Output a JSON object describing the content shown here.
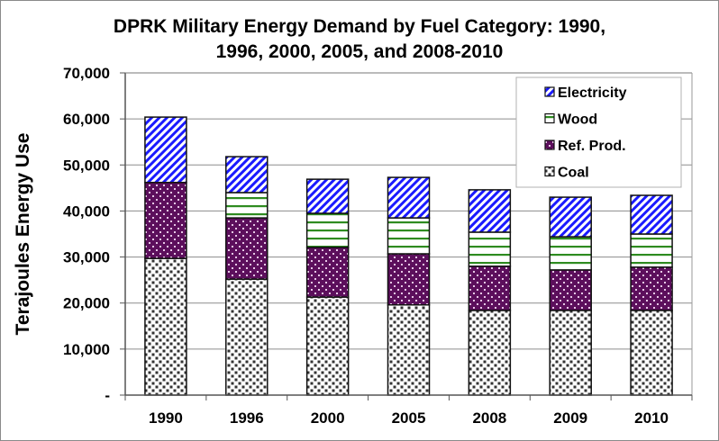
{
  "chart_data": {
    "type": "bar",
    "stacked": true,
    "title": "DPRK Military Energy Demand by Fuel Category: 1990, 1996, 2000, 2005, and 2008-2010",
    "title_lines": [
      "DPRK Military Energy Demand by Fuel Category: 1990,",
      "1996, 2000, 2005, and 2008-2010"
    ],
    "xlabel": "",
    "ylabel": "Terajoules Energy Use",
    "ylim": [
      0,
      70000
    ],
    "yticks": [
      0,
      10000,
      20000,
      30000,
      40000,
      50000,
      60000,
      70000
    ],
    "ytick_labels": [
      "-",
      "10,000",
      "20,000",
      "30,000",
      "40,000",
      "50,000",
      "60,000",
      "70,000"
    ],
    "grid": true,
    "legend_position": "top-right",
    "categories": [
      "1990",
      "1996",
      "2000",
      "2005",
      "2008",
      "2009",
      "2010"
    ],
    "series": [
      {
        "name": "Coal",
        "pattern": "dots",
        "color": "#333333",
        "values": [
          29700,
          25200,
          21300,
          19600,
          18400,
          18400,
          18400
        ]
      },
      {
        "name": "Ref. Prod.",
        "pattern": "dots-on-purple",
        "color": "#5c0f5c",
        "values": [
          16500,
          13300,
          10800,
          11100,
          9600,
          8800,
          9400
        ]
      },
      {
        "name": "Wood",
        "pattern": "horizontal-lines",
        "color": "#2e8b20",
        "values": [
          0,
          5500,
          7400,
          7800,
          7400,
          7200,
          7200
        ]
      },
      {
        "name": "Electricity",
        "pattern": "diagonal-stripes",
        "color": "#1a1aff",
        "values": [
          14200,
          7800,
          7400,
          8800,
          9200,
          8600,
          8400
        ]
      }
    ],
    "legend_order": [
      "Electricity",
      "Wood",
      "Ref. Prod.",
      "Coal"
    ]
  }
}
